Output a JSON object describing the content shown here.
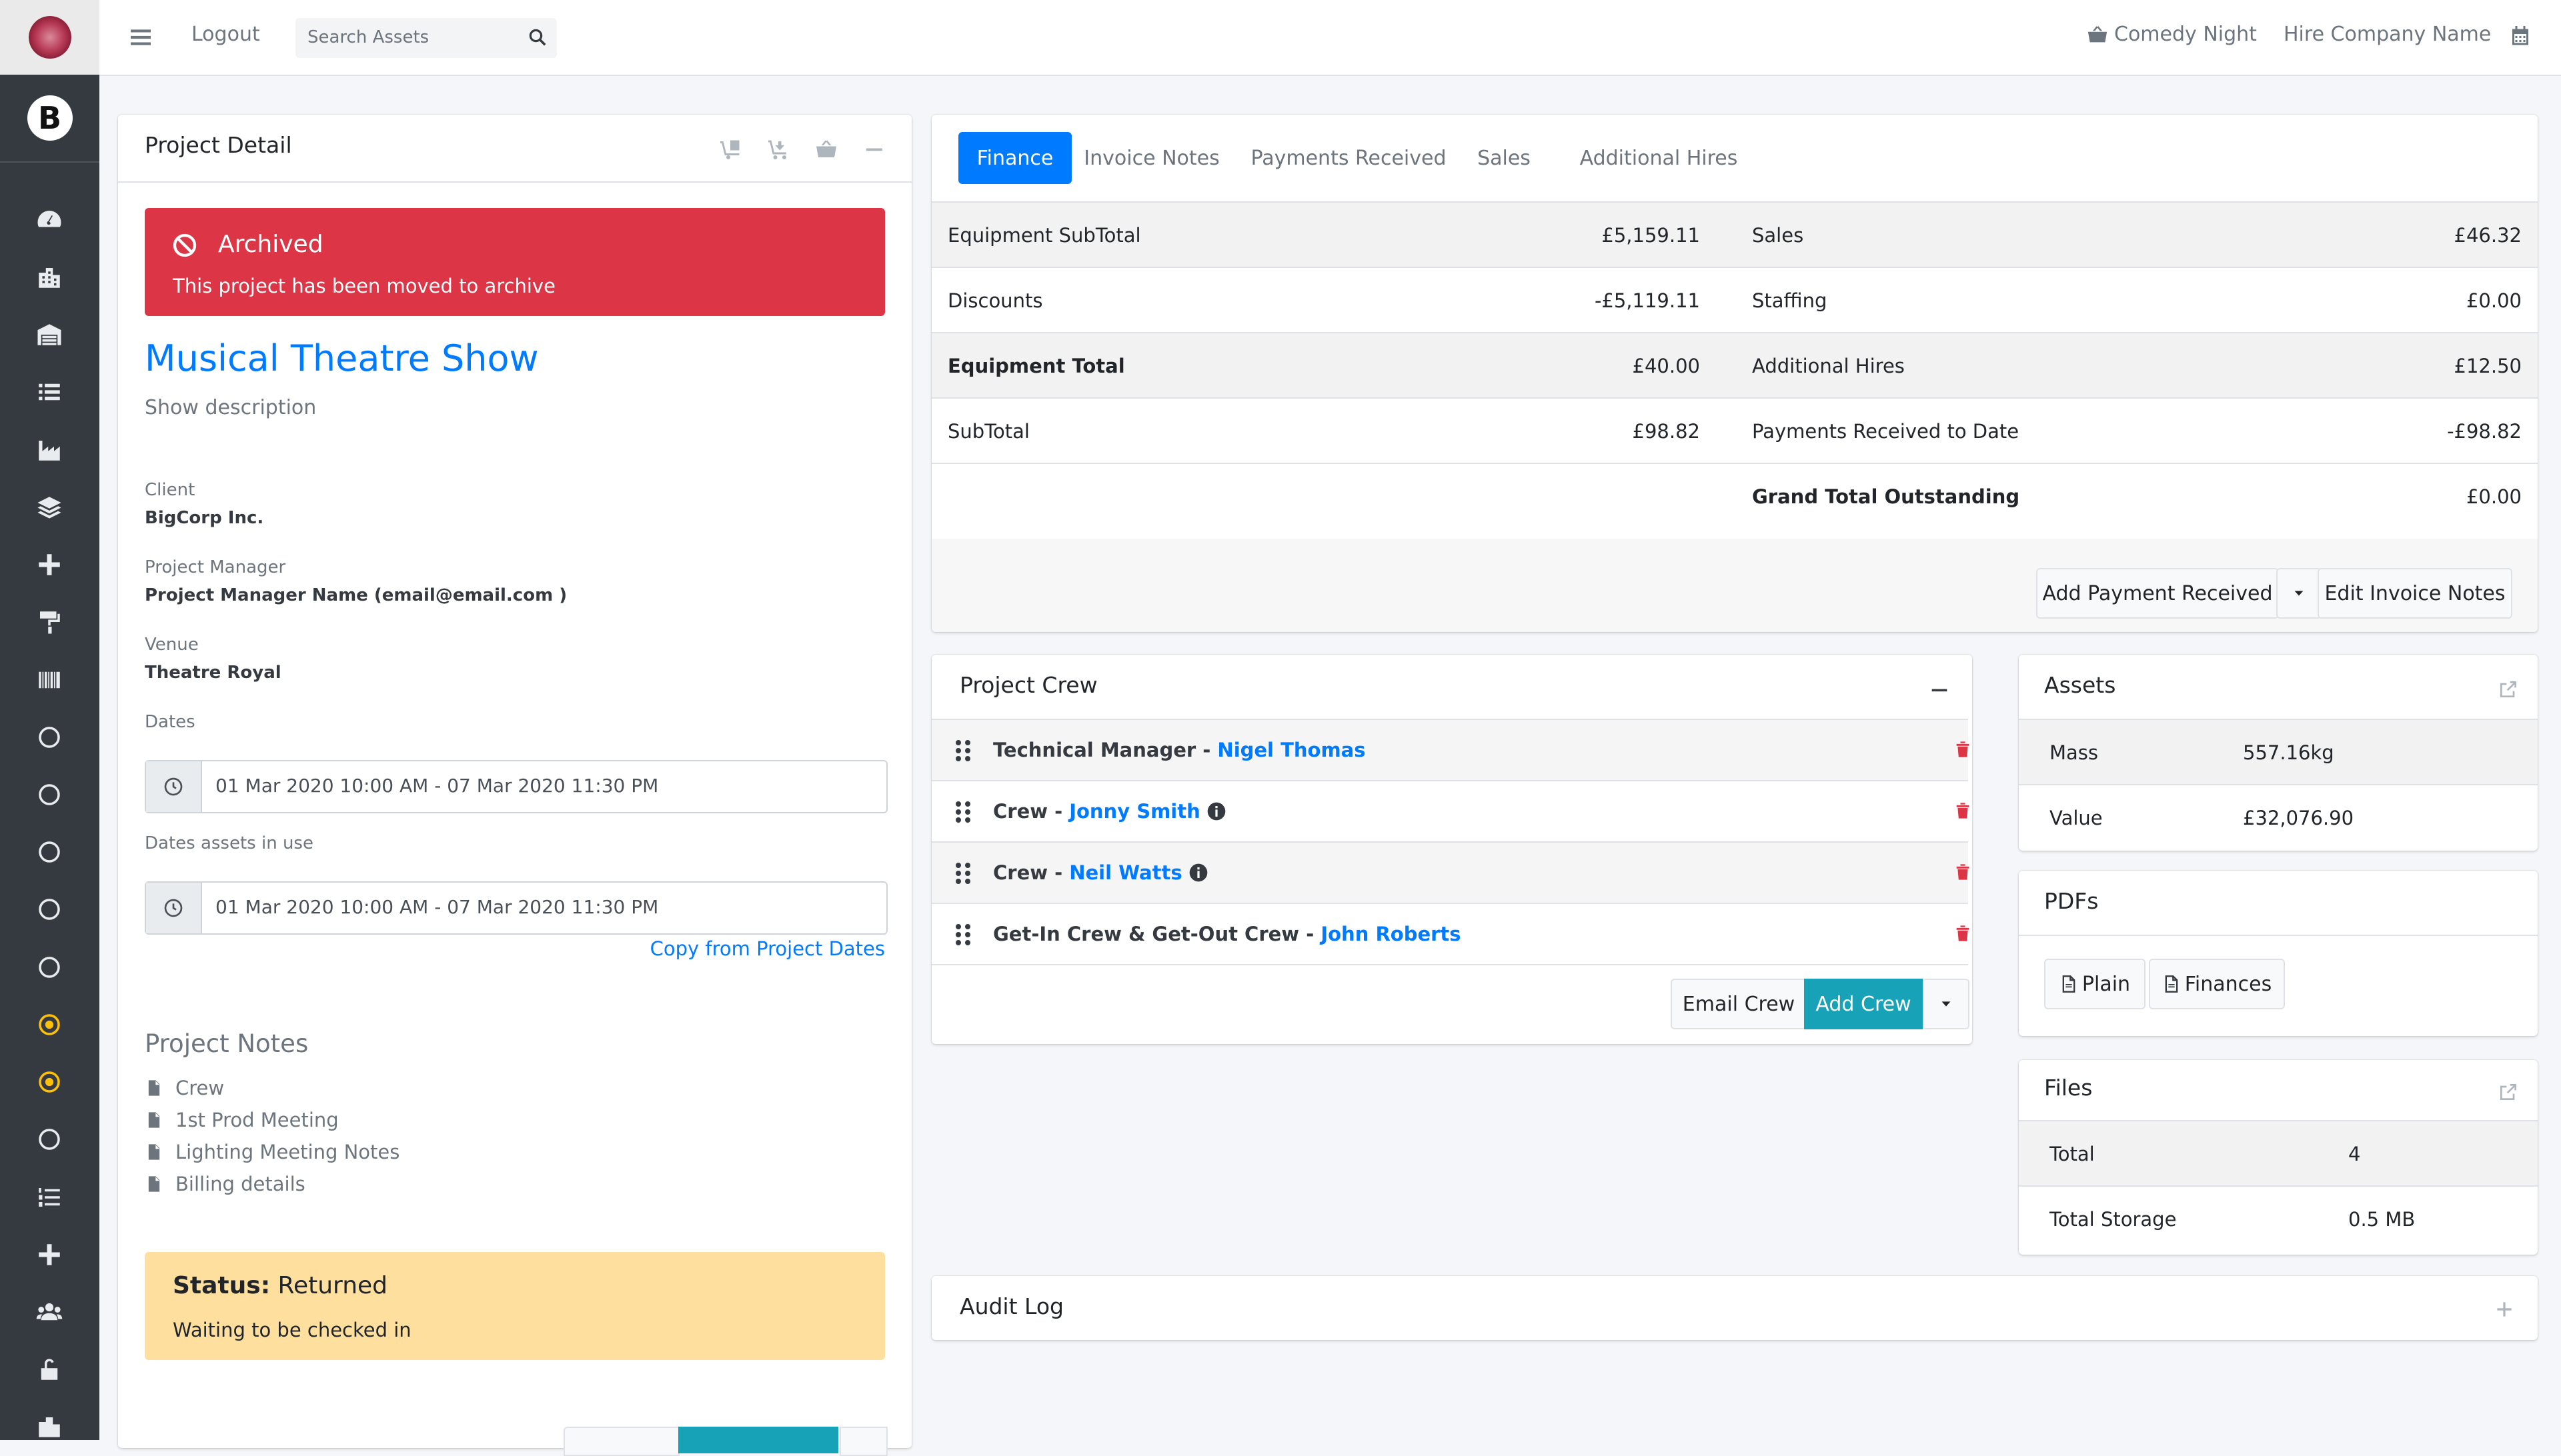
{
  "header": {
    "logout": "Logout",
    "search_placeholder": "Search Assets",
    "project_link": "Comedy Night",
    "company": "Hire Company Name"
  },
  "project_detail": {
    "title": "Project Detail",
    "alert_title": "Archived",
    "alert_text": "This project has been moved to archive",
    "project_name": "Musical Theatre Show",
    "show_description": "Show description",
    "client_label": "Client",
    "client_value": "BigCorp Inc.",
    "manager_label": "Project Manager",
    "manager_value": "Project Manager Name (email@email.com )",
    "venue_label": "Venue",
    "venue_value": "Theatre Royal",
    "dates_label": "Dates",
    "dates_value": "01 Mar 2020 10:00 AM - 07 Mar 2020 11:30 PM",
    "assets_dates_label": "Dates assets in use",
    "assets_dates_value": "01 Mar 2020 10:00 AM - 07 Mar 2020 11:30 PM",
    "copy_dates": "Copy from Project Dates",
    "notes_title": "Project Notes",
    "notes": [
      "Crew",
      "1st Prod Meeting",
      "Lighting Meeting Notes",
      "Billing details"
    ],
    "status_label": "Status:",
    "status_value": "Returned",
    "status_text": "Waiting to be checked in"
  },
  "finance": {
    "tabs": [
      "Finance",
      "Invoice Notes",
      "Payments Received",
      "Sales",
      "Additional Hires"
    ],
    "rows": [
      {
        "l_label": "Equipment SubTotal",
        "l_value": "£5,159.11",
        "r_label": "Sales",
        "r_value": "£46.32"
      },
      {
        "l_label": "Discounts",
        "l_value": "-£5,119.11",
        "r_label": "Staffing",
        "r_value": "£0.00"
      },
      {
        "l_label": "Equipment Total",
        "l_value": "£40.00",
        "r_label": "Additional Hires",
        "r_value": "£12.50"
      },
      {
        "l_label": "SubTotal",
        "l_value": "£98.82",
        "r_label": "Payments Received to Date",
        "r_value": "-£98.82"
      },
      {
        "l_label": "",
        "l_value": "",
        "r_label": "Grand Total Outstanding",
        "r_value": "£0.00"
      }
    ],
    "add_payment": "Add Payment Received",
    "edit_notes": "Edit Invoice Notes"
  },
  "crew": {
    "title": "Project Crew",
    "rows": [
      {
        "role": "Technical Manager - ",
        "name": "Nigel Thomas",
        "info": false
      },
      {
        "role": "Crew - ",
        "name": "Jonny Smith",
        "info": true
      },
      {
        "role": "Crew - ",
        "name": "Neil Watts",
        "info": true
      },
      {
        "role": "Get-In Crew & Get-Out Crew - ",
        "name": "John Roberts",
        "info": false
      }
    ],
    "email_crew": "Email Crew",
    "add_crew": "Add Crew"
  },
  "assets": {
    "title": "Assets",
    "mass_label": "Mass",
    "mass_value": "557.16kg",
    "value_label": "Value",
    "value_value": "£32,076.90"
  },
  "pdfs": {
    "title": "PDFs",
    "plain": "Plain",
    "finances": "Finances"
  },
  "files": {
    "title": "Files",
    "total_label": "Total",
    "total_value": "4",
    "storage_label": "Total Storage",
    "storage_value": "0.5 MB"
  },
  "audit": {
    "title": "Audit Log"
  },
  "colors": {
    "primary": "#007bff",
    "danger": "#dc3545",
    "warning": "#ffdf9e",
    "info": "#17a2b8",
    "sidebar": "#343a40",
    "sidebar_active": "#ffc107"
  }
}
